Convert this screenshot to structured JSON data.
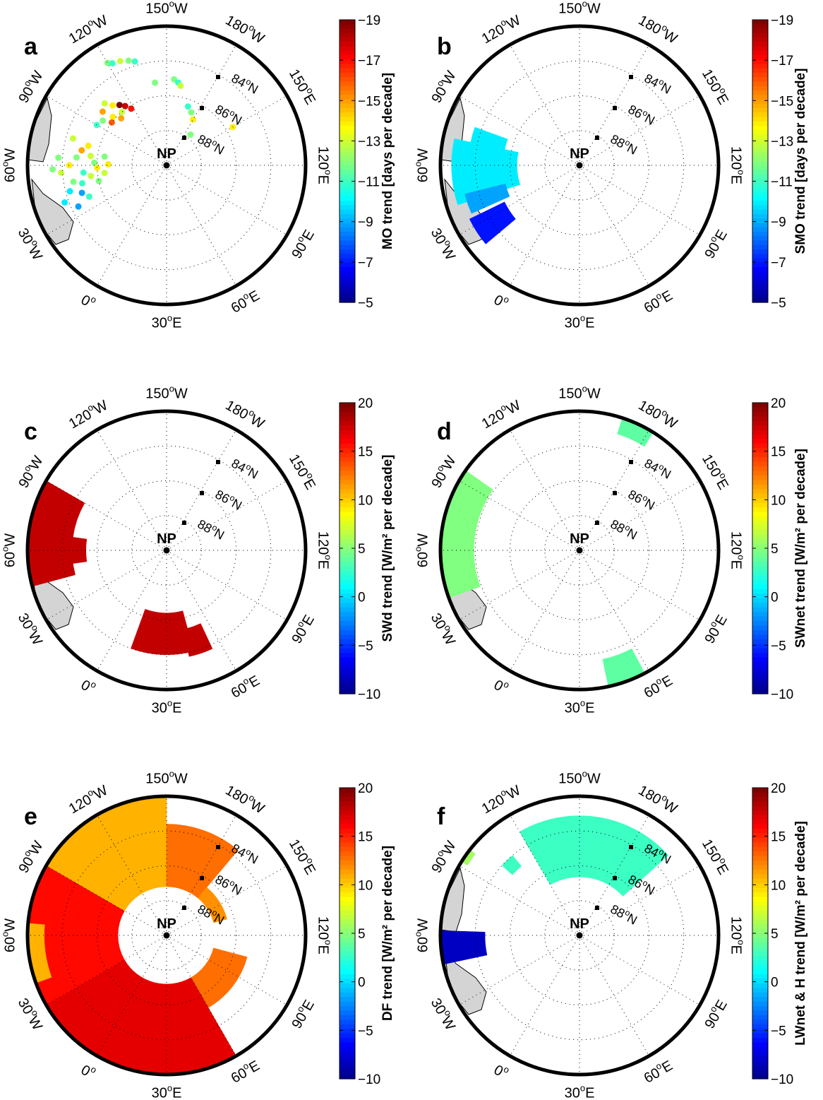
{
  "labels": {
    "north_pole": "NP",
    "lat_labels": [
      "84",
      "86",
      "88"
    ],
    "lat_suffix": "N",
    "lon_labels": [
      {
        "text": "150",
        "suffix": "W",
        "angle": 0
      },
      {
        "text": "180",
        "suffix": "W",
        "angle": 30
      },
      {
        "text": "150",
        "suffix": "E",
        "angle": 60
      },
      {
        "text": "120",
        "suffix": "E",
        "angle": 90
      },
      {
        "text": "90",
        "suffix": "E",
        "angle": 120
      },
      {
        "text": "60",
        "suffix": "E",
        "angle": 150
      },
      {
        "text": "30",
        "suffix": "E",
        "angle": 180
      },
      {
        "text": "0",
        "suffix": "",
        "angle": 210
      },
      {
        "text": "30",
        "suffix": "W",
        "angle": 240
      },
      {
        "text": "60",
        "suffix": "W",
        "angle": 270
      },
      {
        "text": "90",
        "suffix": "W",
        "angle": 300
      },
      {
        "text": "120",
        "suffix": "W",
        "angle": 330
      }
    ]
  },
  "colormap": "jet",
  "panels": [
    {
      "letter": "a",
      "type": "points",
      "colorbar": {
        "label": "MO trend [days per decade]",
        "ticks": [
          "-5",
          "-7",
          "-9",
          "-11",
          "-13",
          "-15",
          "-17",
          "-19"
        ],
        "min": -5,
        "max": -19
      },
      "points": [
        {
          "theta": 330,
          "r": 0.85,
          "v": -12
        },
        {
          "theta": 332,
          "r": 0.83,
          "v": -11
        },
        {
          "theta": 336,
          "r": 0.82,
          "v": -13
        },
        {
          "theta": 340,
          "r": 0.8,
          "v": -12
        },
        {
          "theta": 343,
          "r": 0.78,
          "v": -11
        },
        {
          "theta": 352,
          "r": 0.6,
          "v": -12
        },
        {
          "theta": 5,
          "r": 0.62,
          "v": -12
        },
        {
          "theta": 8,
          "r": 0.6,
          "v": -11
        },
        {
          "theta": 10,
          "r": 0.58,
          "v": -13
        },
        {
          "theta": 20,
          "r": 0.45,
          "v": -11
        },
        {
          "theta": 25,
          "r": 0.42,
          "v": -12
        },
        {
          "theta": 30,
          "r": 0.38,
          "v": -14
        },
        {
          "theta": 38,
          "r": 0.28,
          "v": -12
        },
        {
          "theta": 60,
          "r": 0.55,
          "v": -14
        },
        {
          "theta": 315,
          "r": 0.63,
          "v": -13
        },
        {
          "theta": 318,
          "r": 0.58,
          "v": -14
        },
        {
          "theta": 322,
          "r": 0.55,
          "v": -19
        },
        {
          "theta": 325,
          "r": 0.52,
          "v": -18
        },
        {
          "theta": 310,
          "r": 0.6,
          "v": -15
        },
        {
          "theta": 312,
          "r": 0.52,
          "v": -14
        },
        {
          "theta": 305,
          "r": 0.56,
          "v": -12
        },
        {
          "theta": 320,
          "r": 0.5,
          "v": -13
        },
        {
          "theta": 316,
          "r": 0.47,
          "v": -15
        },
        {
          "theta": 300,
          "r": 0.58,
          "v": -11
        },
        {
          "theta": 308,
          "r": 0.5,
          "v": -16
        },
        {
          "theta": 328,
          "r": 0.48,
          "v": -17
        },
        {
          "theta": 277,
          "r": 0.55,
          "v": -13
        },
        {
          "theta": 272,
          "r": 0.52,
          "v": -12
        },
        {
          "theta": 268,
          "r": 0.5,
          "v": -14
        },
        {
          "theta": 265,
          "r": 0.6,
          "v": -11
        },
        {
          "theta": 262,
          "r": 0.55,
          "v": -13
        },
        {
          "theta": 275,
          "r": 0.65,
          "v": -12
        },
        {
          "theta": 280,
          "r": 0.62,
          "v": -15
        },
        {
          "theta": 270,
          "r": 0.7,
          "v": -14
        },
        {
          "theta": 260,
          "r": 0.68,
          "v": -12
        },
        {
          "theta": 258,
          "r": 0.62,
          "v": -11
        },
        {
          "theta": 266,
          "r": 0.76,
          "v": -13
        },
        {
          "theta": 274,
          "r": 0.78,
          "v": -12
        },
        {
          "theta": 255,
          "r": 0.72,
          "v": -10
        },
        {
          "theta": 252,
          "r": 0.64,
          "v": -9
        },
        {
          "theta": 250,
          "r": 0.78,
          "v": -10
        },
        {
          "theta": 245,
          "r": 0.7,
          "v": -9
        },
        {
          "theta": 248,
          "r": 0.6,
          "v": -11
        },
        {
          "theta": 278,
          "r": 0.45,
          "v": -12
        },
        {
          "theta": 271,
          "r": 0.42,
          "v": -14
        },
        {
          "theta": 263,
          "r": 0.45,
          "v": -13
        },
        {
          "theta": 257,
          "r": 0.5,
          "v": -12
        },
        {
          "theta": 284,
          "r": 0.58,
          "v": -14
        },
        {
          "theta": 286,
          "r": 0.7,
          "v": -13
        },
        {
          "theta": 268,
          "r": 0.82,
          "v": -12
        }
      ]
    },
    {
      "letter": "b",
      "type": "sectors",
      "colorbar": {
        "label": "SMO trend [days per decade]",
        "ticks": [
          "-5",
          "-7",
          "-9",
          "-11",
          "-13",
          "-15",
          "-17",
          "-19"
        ],
        "min": -5,
        "max": -19
      },
      "sectors": [
        {
          "t1": 252,
          "t2": 282,
          "r1": 0.45,
          "r2": 0.92,
          "v": -10
        },
        {
          "t1": 246,
          "t2": 256,
          "r1": 0.55,
          "r2": 0.85,
          "v": -9
        },
        {
          "t1": 282,
          "t2": 290,
          "r1": 0.55,
          "r2": 0.8,
          "v": -10
        },
        {
          "t1": 230,
          "t2": 244,
          "r1": 0.6,
          "r2": 0.88,
          "v": -7
        }
      ]
    },
    {
      "letter": "c",
      "type": "sectors",
      "colorbar": {
        "label": "SWd trend [W/m² per decade]",
        "ticks": [
          "-10",
          "-5",
          "0",
          "5",
          "10",
          "15",
          "20"
        ],
        "min": -10,
        "max": 20
      },
      "sectors": [
        {
          "t1": 255,
          "t2": 300,
          "r1": 0.68,
          "r2": 1.0,
          "v": 18
        },
        {
          "t1": 262,
          "t2": 278,
          "r1": 0.58,
          "r2": 0.68,
          "v": 18
        },
        {
          "t1": 165,
          "t2": 200,
          "r1": 0.45,
          "r2": 0.75,
          "v": 18
        },
        {
          "t1": 155,
          "t2": 168,
          "r1": 0.58,
          "r2": 0.78,
          "v": 18
        }
      ]
    },
    {
      "letter": "d",
      "type": "sectors",
      "colorbar": {
        "label": "SWnet trend [W/m² per decade]",
        "ticks": [
          "-10",
          "-5",
          "0",
          "5",
          "10",
          "15",
          "20"
        ],
        "min": -10,
        "max": 20
      },
      "sectors": [
        {
          "t1": 250,
          "t2": 305,
          "r1": 0.76,
          "r2": 1.0,
          "v": 5
        },
        {
          "t1": 18,
          "t2": 32,
          "r1": 0.88,
          "r2": 1.0,
          "v": 4
        },
        {
          "t1": 152,
          "t2": 168,
          "r1": 0.8,
          "r2": 1.0,
          "v": 4
        }
      ]
    },
    {
      "letter": "e",
      "type": "sectors",
      "colorbar": {
        "label": "DF trend [W/m² per decade]",
        "ticks": [
          "-10",
          "-5",
          "0",
          "5",
          "10",
          "15",
          "20"
        ],
        "min": -10,
        "max": 20
      },
      "sectors": [
        {
          "t1": 300,
          "t2": 360,
          "r1": 0.35,
          "r2": 1.0,
          "v": 11
        },
        {
          "t1": 0,
          "t2": 40,
          "r1": 0.35,
          "r2": 0.8,
          "v": 13
        },
        {
          "t1": 40,
          "t2": 75,
          "r1": 0.35,
          "r2": 0.45,
          "v": 12
        },
        {
          "t1": 105,
          "t2": 150,
          "r1": 0.35,
          "r2": 0.6,
          "v": 13
        },
        {
          "t1": 150,
          "t2": 240,
          "r1": 0.35,
          "r2": 1.0,
          "v": 17
        },
        {
          "t1": 240,
          "t2": 300,
          "r1": 0.35,
          "r2": 1.0,
          "v": 16
        },
        {
          "t1": 250,
          "t2": 275,
          "r1": 0.88,
          "r2": 1.0,
          "v": 11
        }
      ]
    },
    {
      "letter": "f",
      "type": "sectors",
      "colorbar": {
        "label": "LWnet & H trend [W/m² per decade]",
        "ticks": [
          "-10",
          "-5",
          "0",
          "5",
          "10",
          "15",
          "20"
        ],
        "min": -10,
        "max": 20
      },
      "sectors": [
        {
          "t1": 330,
          "t2": 48,
          "r1": 0.42,
          "r2": 0.86,
          "v": 3
        },
        {
          "t1": 312,
          "t2": 320,
          "r1": 0.65,
          "r2": 0.75,
          "v": 3
        },
        {
          "t1": 302,
          "t2": 308,
          "r1": 0.95,
          "r2": 1.0,
          "v": 6
        },
        {
          "t1": 258,
          "t2": 272,
          "r1": 0.68,
          "r2": 1.0,
          "v": -8
        }
      ]
    }
  ]
}
